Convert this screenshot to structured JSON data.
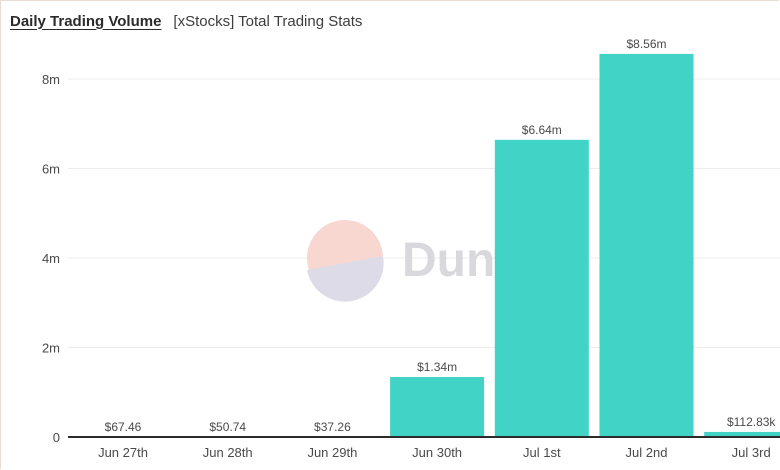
{
  "header": {
    "title": "Daily Trading Volume",
    "subtitle": "[xStocks] Total Trading Stats"
  },
  "watermark": {
    "text": "Dune"
  },
  "colors": {
    "bar": "#41d3c6",
    "grid": "#ececec",
    "axis": "#2b2b2b",
    "watermark_top": "#f8d7d1",
    "watermark_bottom": "#dcdbe7"
  },
  "chart_data": {
    "type": "bar",
    "title": "Daily Trading Volume",
    "subtitle": "[xStocks] Total Trading Stats",
    "xlabel": "",
    "ylabel": "",
    "categories": [
      "Jun 27th",
      "Jun 28th",
      "Jun 29th",
      "Jun 30th",
      "Jul 1st",
      "Jul 2nd",
      "Jul 3rd"
    ],
    "values": [
      67.46,
      50.74,
      37.26,
      1340000,
      6640000,
      8560000,
      112830
    ],
    "data_labels": [
      "$67.46",
      "$50.74",
      "$37.26",
      "$1.34m",
      "$6.64m",
      "$8.56m",
      "$112.83k"
    ],
    "ylim": [
      0,
      8960000
    ],
    "yticks": [
      0,
      2000000,
      4000000,
      6000000,
      8000000
    ],
    "ytick_labels": [
      "0",
      "2m",
      "4m",
      "6m",
      "8m"
    ],
    "grid": true,
    "legend": "none"
  }
}
